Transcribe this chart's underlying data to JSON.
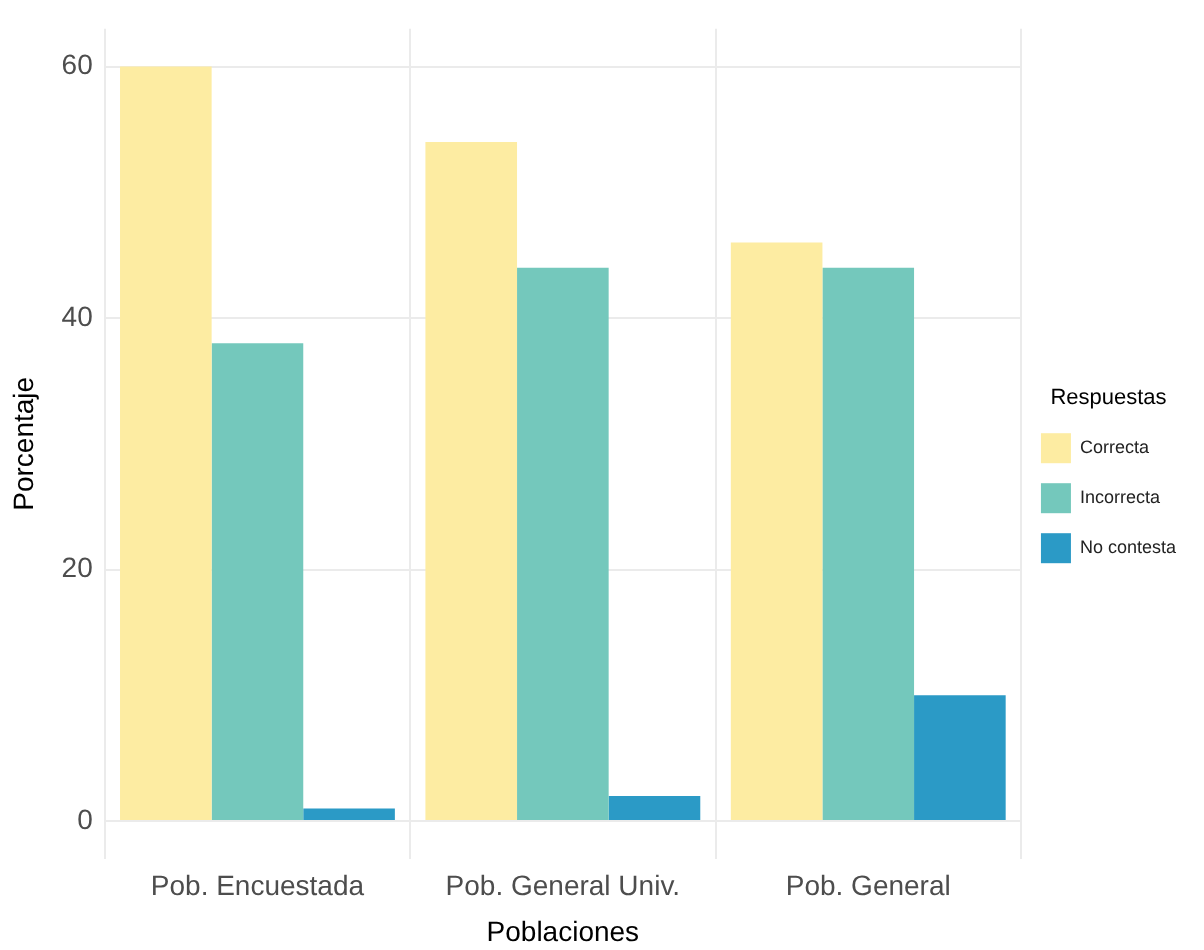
{
  "chart_data": {
    "type": "bar",
    "xlabel": "Poblaciones",
    "ylabel": "Porcentaje",
    "legend_title": "Respuestas",
    "categories": [
      "Pob. Encuestada",
      "Pob. General Univ.",
      "Pob. General"
    ],
    "series": [
      {
        "name": "Correcta",
        "color": "#fdeca2",
        "values": [
          60,
          54,
          46
        ]
      },
      {
        "name": "Incorrecta",
        "color": "#74c8bc",
        "values": [
          38,
          44,
          44
        ]
      },
      {
        "name": "No contesta",
        "color": "#2b9ac6",
        "values": [
          1,
          2,
          10
        ]
      }
    ],
    "ylim": [
      -3,
      63
    ],
    "yticks": [
      0,
      20,
      40,
      60
    ],
    "grid": true,
    "legend": "right"
  }
}
